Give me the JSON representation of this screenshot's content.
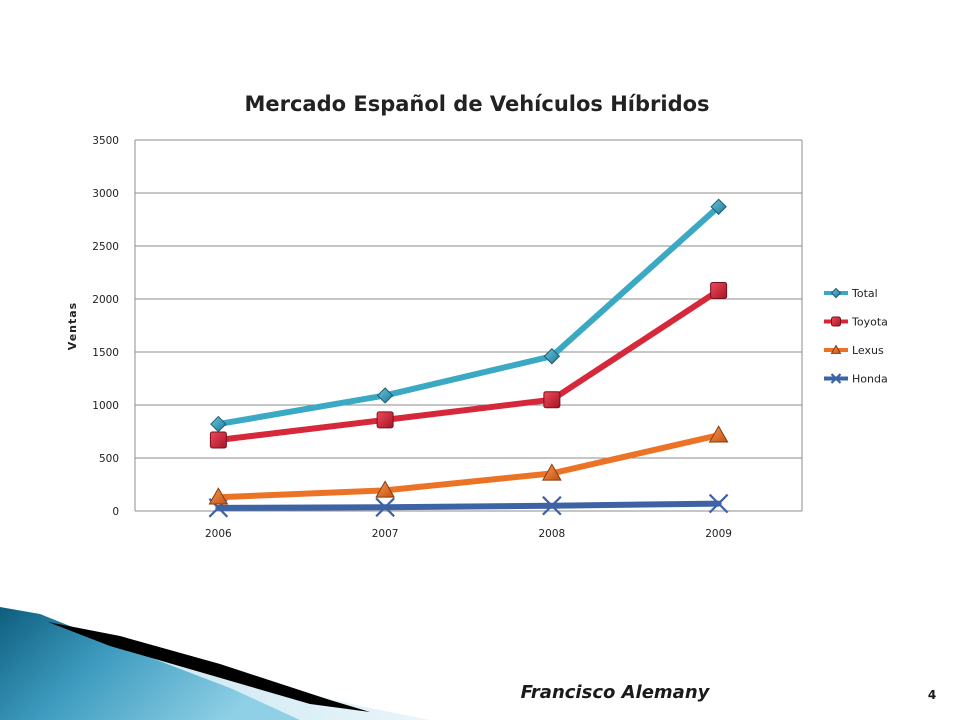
{
  "chart_data": {
    "type": "line",
    "title": "Mercado Español de Vehículos Híbridos",
    "xlabel": "",
    "ylabel": "Ventas",
    "categories": [
      "2006",
      "2007",
      "2008",
      "2009"
    ],
    "ylim": [
      0,
      3500
    ],
    "yticks": [
      0,
      500,
      1000,
      1500,
      2000,
      2500,
      3000,
      3500
    ],
    "grid": "horizontal",
    "legend_position": "right",
    "series": [
      {
        "name": "Total",
        "values": [
          820,
          1090,
          1460,
          2870
        ],
        "color": "#3BA8C4",
        "marker": "diamond"
      },
      {
        "name": "Toyota",
        "values": [
          670,
          860,
          1050,
          2080
        ],
        "color": "#D6283B",
        "marker": "square"
      },
      {
        "name": "Lexus",
        "values": [
          130,
          195,
          355,
          715
        ],
        "color": "#EC7326",
        "marker": "triangle"
      },
      {
        "name": "Honda",
        "values": [
          30,
          35,
          50,
          70
        ],
        "color": "#3E63A4",
        "marker": "x"
      }
    ]
  },
  "footer": {
    "author": "Francisco Alemany",
    "page_number": "4"
  },
  "colors": {
    "decor_dark_teal": "#0E5E7E",
    "decor_light_blue": "#5FB6D6",
    "decor_black": "#000000"
  }
}
